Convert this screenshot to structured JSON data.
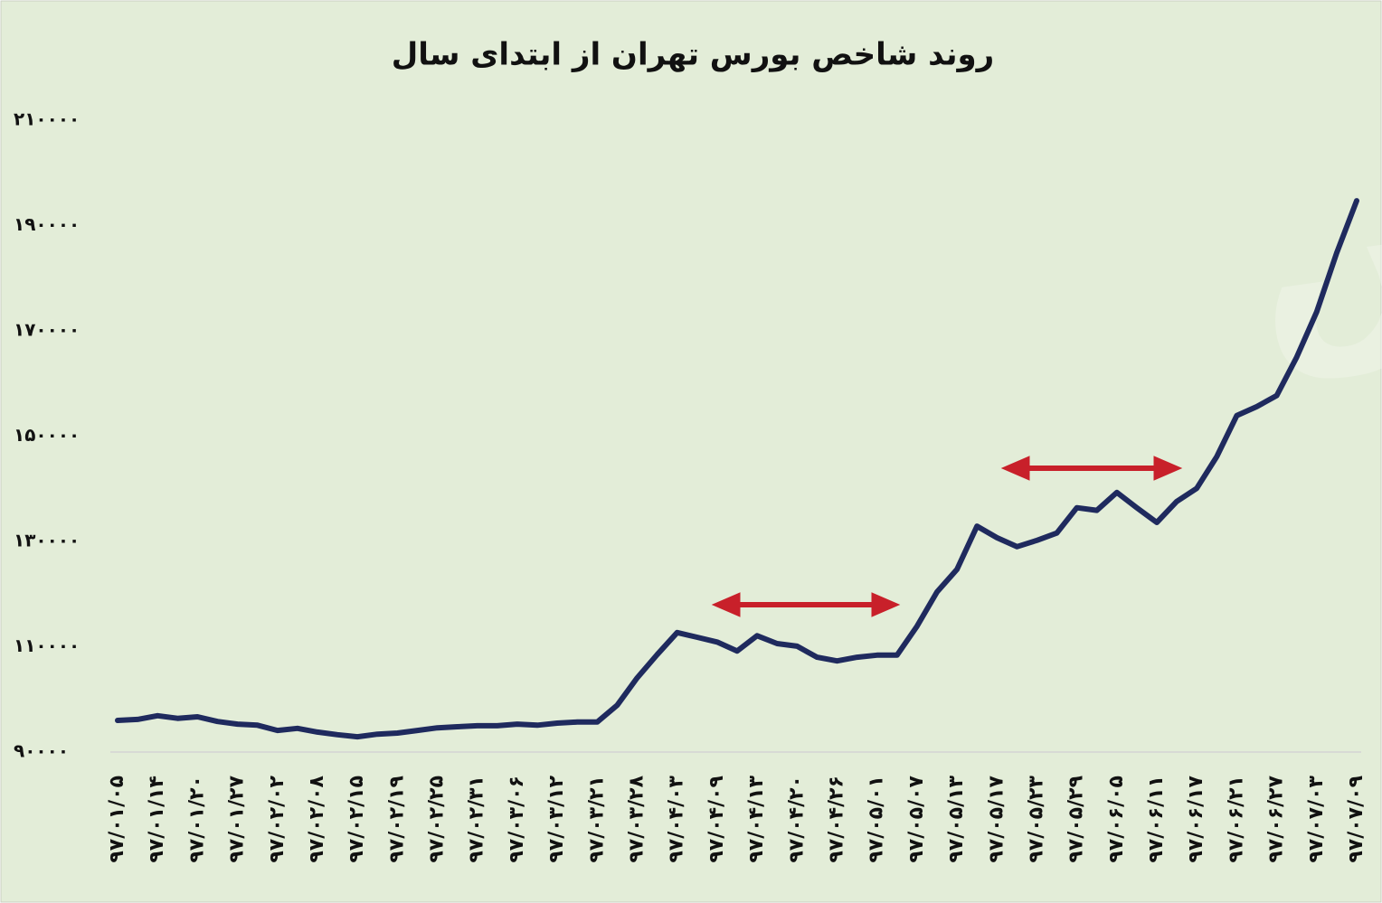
{
  "chart_data": {
    "type": "line",
    "title": "روند شاخص بورس تهران از ابتدای سال",
    "watermark": "دنیای بورس",
    "categories": [
      "۹۷/۰۱/۰۵",
      null,
      "۹۷/۰۱/۱۴",
      null,
      "۹۷/۰۱/۲۰",
      null,
      "۹۷/۰۱/۲۷",
      null,
      "۹۷/۰۲/۰۲",
      null,
      "۹۷/۰۲/۰۸",
      null,
      "۹۷/۰۲/۱۵",
      null,
      "۹۷/۰۲/۱۹",
      null,
      "۹۷/۰۲/۲۵",
      null,
      "۹۷/۰۲/۳۱",
      null,
      "۹۷/۰۳/۰۶",
      null,
      "۹۷/۰۳/۱۲",
      null,
      "۹۷/۰۳/۲۱",
      null,
      "۹۷/۰۳/۲۸",
      null,
      "۹۷/۰۴/۰۳",
      null,
      "۹۷/۰۴/۰۹",
      null,
      "۹۷/۰۴/۱۳",
      null,
      "۹۷/۰۴/۲۰",
      null,
      "۹۷/۰۴/۲۶",
      null,
      "۹۷/۰۵/۰۱",
      null,
      "۹۷/۰۵/۰۷",
      null,
      "۹۷/۰۵/۱۳",
      null,
      "۹۷/۰۵/۱۷",
      null,
      "۹۷/۰۵/۲۳",
      null,
      "۹۷/۰۵/۲۹",
      null,
      "۹۷/۰۶/۰۵",
      null,
      "۹۷/۰۶/۱۱",
      null,
      "۹۷/۰۶/۱۷",
      null,
      "۹۷/۰۶/۲۱",
      null,
      "۹۷/۰۶/۲۷",
      null,
      "۹۷/۰۷/۰۳",
      null,
      "۹۷/۰۷/۰۹"
    ],
    "values": [
      96000,
      96200,
      96900,
      96400,
      96700,
      95800,
      95300,
      95100,
      94100,
      94500,
      93800,
      93300,
      92900,
      93400,
      93600,
      94100,
      94600,
      94800,
      95000,
      95000,
      95300,
      95100,
      95500,
      95700,
      95700,
      98900,
      104100,
      108500,
      112700,
      111800,
      110900,
      109200,
      112100,
      110600,
      110100,
      108000,
      107300,
      108000,
      108400,
      108400,
      113900,
      120400,
      124700,
      132900,
      130700,
      129000,
      130200,
      131600,
      136400,
      135900,
      139300,
      136400,
      133600,
      137600,
      140100,
      146100,
      153900,
      155600,
      157700,
      165000,
      173600,
      184800,
      194700
    ],
    "color": "#1f2a5e",
    "ylim": [
      90000,
      210000
    ],
    "yticks": [
      {
        "value": 90000,
        "label": "۹۰۰۰۰"
      },
      {
        "value": 110000,
        "label": "۱۱۰۰۰۰"
      },
      {
        "value": 130000,
        "label": "۱۳۰۰۰۰"
      },
      {
        "value": 150000,
        "label": "۱۵۰۰۰۰"
      },
      {
        "value": 170000,
        "label": "۱۷۰۰۰۰"
      },
      {
        "value": 190000,
        "label": "۱۹۰۰۰۰"
      },
      {
        "value": 210000,
        "label": "۲۱۰۰۰۰"
      }
    ],
    "grid": false
  }
}
